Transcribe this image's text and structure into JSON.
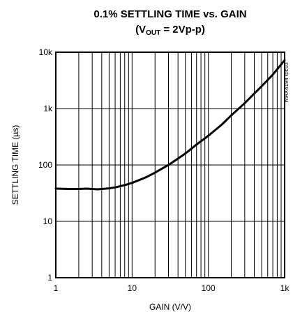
{
  "chart_data": {
    "type": "line",
    "title": "0.1% SETTLING TIME vs. GAIN",
    "subtitle": {
      "prefix": "(V",
      "subscript": "OUT",
      "suffix": " = 2Vp-p)"
    },
    "xlabel": "GAIN (V/V)",
    "ylabel": "SETTLING TIME (µs)",
    "xscale": "log",
    "yscale": "log",
    "xlim": [
      1,
      1000
    ],
    "ylim": [
      1,
      10000
    ],
    "xticks": [
      {
        "value": 1,
        "label": "1"
      },
      {
        "value": 10,
        "label": "10"
      },
      {
        "value": 100,
        "label": "100"
      },
      {
        "value": 1000,
        "label": "1k"
      }
    ],
    "yticks": [
      {
        "value": 1,
        "label": "1"
      },
      {
        "value": 10,
        "label": "10"
      },
      {
        "value": 100,
        "label": "100"
      },
      {
        "value": 1000,
        "label": "1k"
      },
      {
        "value": 10000,
        "label": "10k"
      }
    ],
    "grid": true,
    "annotation": "MAX4194 toc03",
    "series": [
      {
        "x": [
          1,
          1.5,
          2,
          2.5,
          3,
          3.5,
          4,
          5,
          6,
          7,
          8,
          10,
          12,
          15,
          20,
          25,
          30,
          40,
          50,
          70,
          100,
          150,
          200,
          300,
          500,
          700,
          1000
        ],
        "y": [
          38,
          37.5,
          37.5,
          38,
          37.5,
          37,
          37.5,
          38.5,
          40,
          42,
          44,
          48,
          53,
          60,
          73,
          87,
          100,
          130,
          160,
          230,
          330,
          520,
          760,
          1250,
          2500,
          4000,
          7200
        ]
      }
    ]
  }
}
